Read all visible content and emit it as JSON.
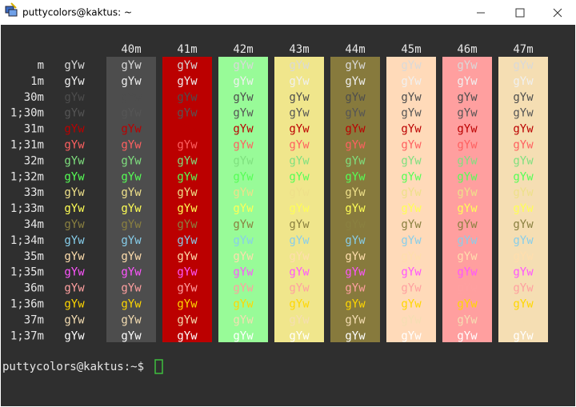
{
  "window": {
    "title": "puttycolors@kaktus: ~"
  },
  "table": {
    "columns": [
      "40m",
      "41m",
      "42m",
      "43m",
      "44m",
      "45m",
      "46m",
      "47m"
    ],
    "rows": [
      "m",
      "1m",
      "30m",
      "1;30m",
      "31m",
      "1;31m",
      "32m",
      "1;32m",
      "33m",
      "1;33m",
      "34m",
      "1;34m",
      "35m",
      "1;35m",
      "36m",
      "1;36m",
      "37m",
      "1;37m"
    ],
    "sample": "gYw"
  },
  "prompt": "puttycolors@kaktus:~$"
}
